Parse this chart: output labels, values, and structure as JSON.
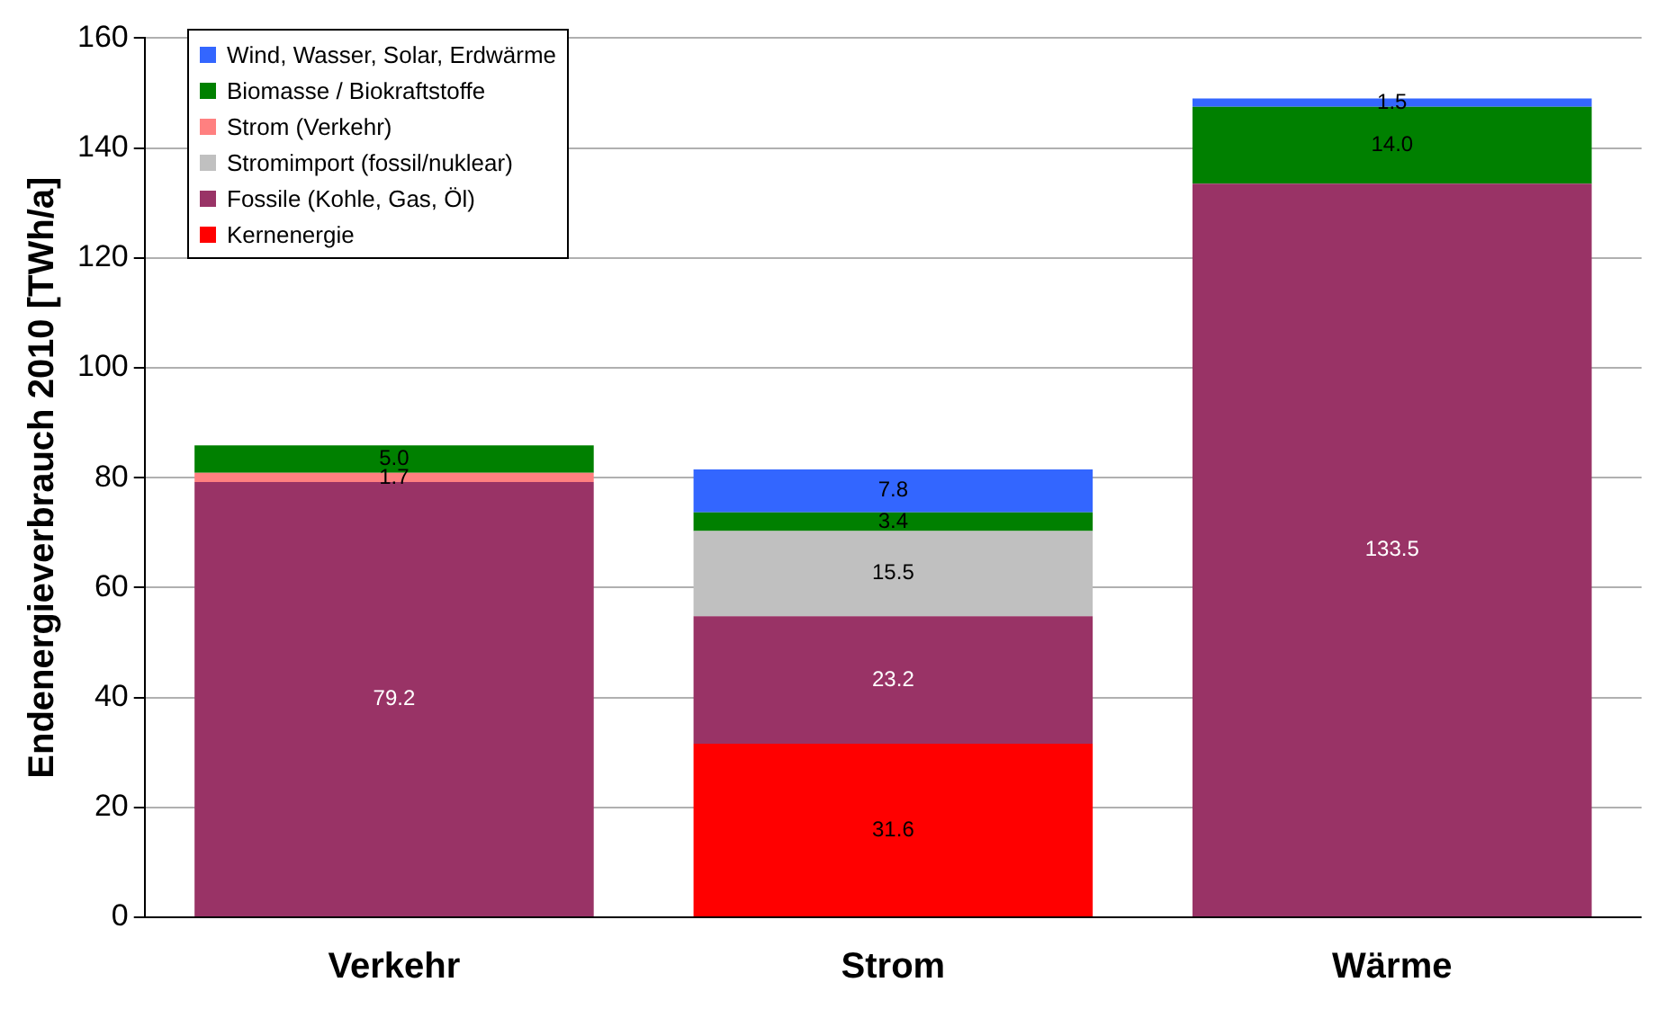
{
  "chart_data": {
    "type": "bar",
    "stacked": true,
    "ylabel": "Endenergieverbrauch 2010 [TWh/a]",
    "categories": [
      "Verkehr",
      "Strom",
      "Wärme"
    ],
    "series": [
      {
        "name": "Kernenergie",
        "color": "#ff0000",
        "values": [
          null,
          31.6,
          null
        ],
        "value_labels": [
          null,
          "31.6",
          null
        ]
      },
      {
        "name": "Fossile (Kohle, Gas, Öl)",
        "color": "#993366",
        "values": [
          79.2,
          23.2,
          133.5
        ],
        "value_labels": [
          "79.2",
          "23.2",
          "133.5"
        ]
      },
      {
        "name": "Stromimport (fossil/nuklear)",
        "color": "#c0c0c0",
        "values": [
          null,
          15.5,
          null
        ],
        "value_labels": [
          null,
          "15.5",
          null
        ]
      },
      {
        "name": "Strom (Verkehr)",
        "color": "#ff8080",
        "values": [
          1.7,
          null,
          null
        ],
        "value_labels": [
          "1.7",
          null,
          null
        ]
      },
      {
        "name": "Biomasse / Biokraftstoffe",
        "color": "#008000",
        "values": [
          5.0,
          3.4,
          14.0
        ],
        "value_labels": [
          "5.0",
          "3.4",
          "14.0"
        ]
      },
      {
        "name": "Wind, Wasser, Solar, Erdwärme",
        "color": "#3366ff",
        "values": [
          null,
          7.8,
          1.5
        ],
        "value_labels": [
          null,
          "7.8",
          "1.5"
        ]
      }
    ],
    "ylim": [
      0,
      160
    ],
    "yticks": [
      0,
      20,
      40,
      60,
      80,
      100,
      120,
      140,
      160
    ],
    "grid": "y",
    "legend": "top left"
  }
}
